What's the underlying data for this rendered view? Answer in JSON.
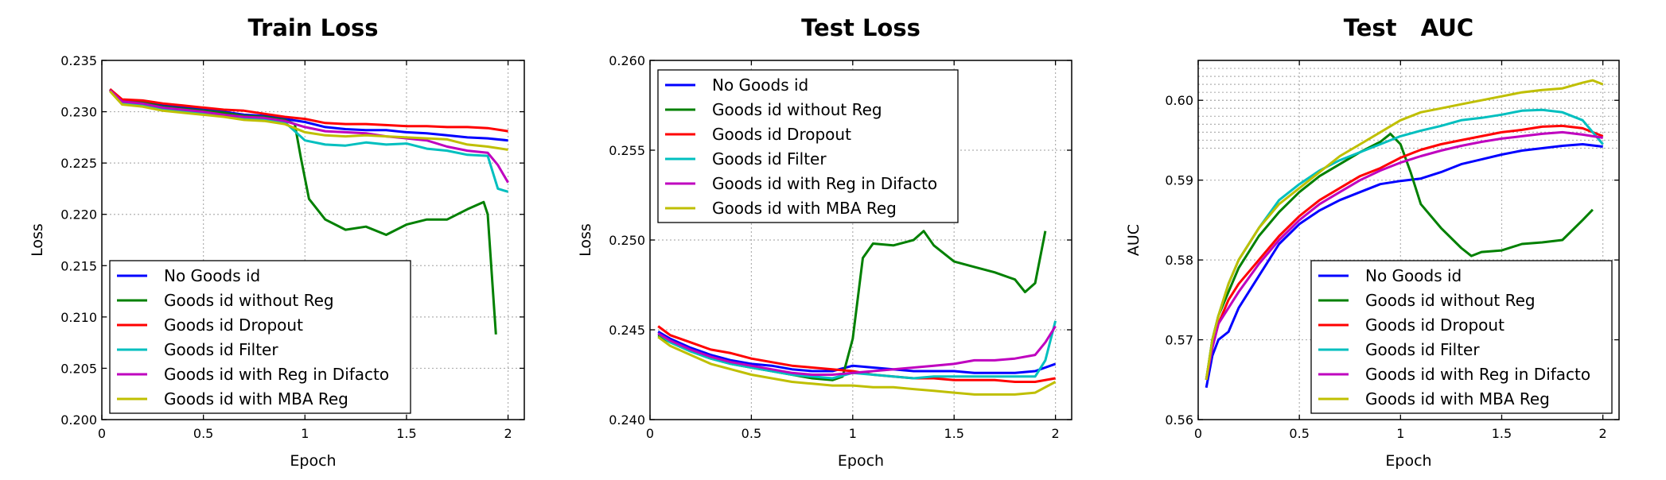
{
  "figure": {
    "background": "#ffffff"
  },
  "chart_data": [
    {
      "type": "line",
      "title": "Train Loss",
      "xlabel": "Epoch",
      "ylabel": "Loss",
      "xlim": [
        0,
        2.08
      ],
      "ylim": [
        0.2,
        0.235
      ],
      "xticks": [
        0,
        0.5,
        1,
        1.5,
        2
      ],
      "xtick_labels": [
        "0",
        "0.5",
        "1",
        "1.5",
        "2"
      ],
      "yticks": [
        0.2,
        0.205,
        0.21,
        0.215,
        0.22,
        0.225,
        0.23,
        0.235
      ],
      "ytick_labels": [
        "0.200",
        "0.205",
        "0.210",
        "0.215",
        "0.220",
        "0.225",
        "0.230",
        "0.235"
      ],
      "grid": true,
      "legend": "bottom-left",
      "series": [
        {
          "name": "No Goods id",
          "color": "#0000ff",
          "x": [
            0.04,
            0.1,
            0.2,
            0.3,
            0.4,
            0.5,
            0.6,
            0.7,
            0.8,
            0.9,
            1.0,
            1.1,
            1.2,
            1.3,
            1.4,
            1.5,
            1.6,
            1.7,
            1.8,
            1.9,
            2.0
          ],
          "y": [
            0.2322,
            0.2311,
            0.231,
            0.2306,
            0.2305,
            0.2302,
            0.23,
            0.2297,
            0.2296,
            0.2293,
            0.229,
            0.2285,
            0.2283,
            0.2282,
            0.2282,
            0.228,
            0.2279,
            0.2277,
            0.2275,
            0.2274,
            0.2272
          ]
        },
        {
          "name": "Goods id without Reg",
          "color": "#008000",
          "x": [
            0.04,
            0.1,
            0.2,
            0.3,
            0.4,
            0.5,
            0.6,
            0.7,
            0.8,
            0.9,
            0.95,
            0.98,
            1.02,
            1.1,
            1.2,
            1.3,
            1.4,
            1.5,
            1.6,
            1.7,
            1.8,
            1.88,
            1.9,
            1.94
          ],
          "y": [
            0.2322,
            0.2311,
            0.2309,
            0.2305,
            0.2303,
            0.2301,
            0.2299,
            0.2296,
            0.2295,
            0.2292,
            0.2288,
            0.2255,
            0.2215,
            0.2195,
            0.2185,
            0.2188,
            0.218,
            0.219,
            0.2195,
            0.2195,
            0.2205,
            0.2212,
            0.22,
            0.2083
          ]
        },
        {
          "name": "Goods id Dropout",
          "color": "#ff0000",
          "x": [
            0.04,
            0.1,
            0.2,
            0.3,
            0.4,
            0.5,
            0.6,
            0.7,
            0.8,
            0.9,
            1.0,
            1.1,
            1.2,
            1.3,
            1.4,
            1.5,
            1.6,
            1.7,
            1.8,
            1.9,
            2.0
          ],
          "y": [
            0.2322,
            0.2312,
            0.2311,
            0.2308,
            0.2306,
            0.2304,
            0.2302,
            0.2301,
            0.2298,
            0.2295,
            0.2293,
            0.2289,
            0.2288,
            0.2288,
            0.2287,
            0.2286,
            0.2286,
            0.2285,
            0.2285,
            0.2284,
            0.2281
          ]
        },
        {
          "name": "Goods id Filter",
          "color": "#00bfbf",
          "x": [
            0.04,
            0.1,
            0.2,
            0.3,
            0.4,
            0.5,
            0.6,
            0.7,
            0.8,
            0.9,
            1.0,
            1.1,
            1.2,
            1.3,
            1.4,
            1.5,
            1.6,
            1.7,
            1.8,
            1.9,
            1.95,
            2.0
          ],
          "y": [
            0.2321,
            0.2309,
            0.2307,
            0.2303,
            0.2301,
            0.2299,
            0.2296,
            0.2294,
            0.2293,
            0.229,
            0.2272,
            0.2268,
            0.2267,
            0.227,
            0.2268,
            0.2269,
            0.2264,
            0.2262,
            0.2258,
            0.2257,
            0.2225,
            0.2222
          ]
        },
        {
          "name": "Goods id with Reg in Difacto",
          "color": "#bf00bf",
          "x": [
            0.04,
            0.1,
            0.2,
            0.3,
            0.4,
            0.5,
            0.6,
            0.7,
            0.8,
            0.9,
            1.0,
            1.1,
            1.2,
            1.3,
            1.4,
            1.5,
            1.6,
            1.7,
            1.8,
            1.9,
            1.95,
            2.0
          ],
          "y": [
            0.2321,
            0.231,
            0.2308,
            0.2304,
            0.2302,
            0.23,
            0.2297,
            0.2295,
            0.2294,
            0.2291,
            0.2285,
            0.2281,
            0.228,
            0.2279,
            0.2276,
            0.2274,
            0.2272,
            0.2266,
            0.2262,
            0.226,
            0.2248,
            0.2231
          ]
        },
        {
          "name": "Goods id with MBA Reg",
          "color": "#bfbf00",
          "x": [
            0.04,
            0.1,
            0.2,
            0.3,
            0.4,
            0.5,
            0.6,
            0.7,
            0.8,
            0.9,
            1.0,
            1.1,
            1.2,
            1.3,
            1.4,
            1.5,
            1.6,
            1.7,
            1.8,
            1.9,
            2.0
          ],
          "y": [
            0.232,
            0.2307,
            0.2305,
            0.2301,
            0.2299,
            0.2297,
            0.2295,
            0.2292,
            0.2291,
            0.2288,
            0.228,
            0.2277,
            0.2276,
            0.2277,
            0.2276,
            0.2275,
            0.2274,
            0.2273,
            0.2268,
            0.2266,
            0.2263
          ]
        }
      ]
    },
    {
      "type": "line",
      "title": "Test Loss",
      "xlabel": "Epoch",
      "ylabel": "Loss",
      "xlim": [
        0,
        2.08
      ],
      "ylim": [
        0.24,
        0.26
      ],
      "xticks": [
        0,
        0.5,
        1,
        1.5,
        2
      ],
      "xtick_labels": [
        "0",
        "0.5",
        "1",
        "1.5",
        "2"
      ],
      "yticks": [
        0.24,
        0.245,
        0.25,
        0.255,
        0.26
      ],
      "ytick_labels": [
        "0.240",
        "0.245",
        "0.250",
        "0.255",
        "0.260"
      ],
      "grid": true,
      "legend": "top-left",
      "series": [
        {
          "name": "No Goods id",
          "color": "#0000ff",
          "x": [
            0.04,
            0.1,
            0.2,
            0.3,
            0.4,
            0.5,
            0.6,
            0.7,
            0.8,
            0.9,
            1.0,
            1.1,
            1.2,
            1.3,
            1.4,
            1.5,
            1.6,
            1.7,
            1.8,
            1.9,
            2.0
          ],
          "y": [
            0.2449,
            0.2445,
            0.244,
            0.2436,
            0.2433,
            0.2431,
            0.243,
            0.2428,
            0.2427,
            0.2427,
            0.243,
            0.2429,
            0.2428,
            0.2427,
            0.2427,
            0.2427,
            0.2426,
            0.2426,
            0.2426,
            0.2427,
            0.2431
          ]
        },
        {
          "name": "Goods id without Reg",
          "color": "#008000",
          "x": [
            0.04,
            0.1,
            0.2,
            0.3,
            0.4,
            0.5,
            0.6,
            0.7,
            0.8,
            0.9,
            0.95,
            1.0,
            1.05,
            1.1,
            1.2,
            1.3,
            1.35,
            1.4,
            1.5,
            1.6,
            1.7,
            1.8,
            1.85,
            1.9,
            1.95
          ],
          "y": [
            0.2447,
            0.2443,
            0.2438,
            0.2434,
            0.2431,
            0.2429,
            0.2427,
            0.2425,
            0.2423,
            0.2422,
            0.2424,
            0.2445,
            0.249,
            0.2498,
            0.2497,
            0.25,
            0.2505,
            0.2497,
            0.2488,
            0.2485,
            0.2482,
            0.2478,
            0.2471,
            0.2476,
            0.2505
          ]
        },
        {
          "name": "Goods id Dropout",
          "color": "#ff0000",
          "x": [
            0.04,
            0.1,
            0.2,
            0.3,
            0.4,
            0.5,
            0.6,
            0.7,
            0.8,
            0.9,
            1.0,
            1.1,
            1.2,
            1.3,
            1.4,
            1.5,
            1.6,
            1.7,
            1.8,
            1.9,
            2.0
          ],
          "y": [
            0.2452,
            0.2447,
            0.2443,
            0.2439,
            0.2437,
            0.2434,
            0.2432,
            0.243,
            0.2429,
            0.2428,
            0.2427,
            0.2425,
            0.2424,
            0.2423,
            0.2423,
            0.2422,
            0.2422,
            0.2422,
            0.2421,
            0.2421,
            0.2423
          ]
        },
        {
          "name": "Goods id Filter",
          "color": "#00bfbf",
          "x": [
            0.04,
            0.1,
            0.2,
            0.3,
            0.4,
            0.5,
            0.6,
            0.7,
            0.8,
            0.9,
            1.0,
            1.1,
            1.2,
            1.3,
            1.4,
            1.5,
            1.6,
            1.7,
            1.8,
            1.9,
            1.95,
            2.0
          ],
          "y": [
            0.2448,
            0.2443,
            0.2438,
            0.2434,
            0.2431,
            0.2429,
            0.2427,
            0.2425,
            0.2424,
            0.2423,
            0.2426,
            0.2425,
            0.2424,
            0.2423,
            0.2424,
            0.2424,
            0.2424,
            0.2424,
            0.2424,
            0.2424,
            0.2433,
            0.2455
          ]
        },
        {
          "name": "Goods id with Reg in Difacto",
          "color": "#bf00bf",
          "x": [
            0.04,
            0.1,
            0.2,
            0.3,
            0.4,
            0.5,
            0.6,
            0.7,
            0.8,
            0.9,
            1.0,
            1.1,
            1.2,
            1.3,
            1.4,
            1.5,
            1.6,
            1.7,
            1.8,
            1.9,
            1.95,
            2.0
          ],
          "y": [
            0.2448,
            0.2444,
            0.2439,
            0.2435,
            0.2432,
            0.243,
            0.2428,
            0.2426,
            0.2425,
            0.2425,
            0.2426,
            0.2427,
            0.2428,
            0.2429,
            0.243,
            0.2431,
            0.2433,
            0.2433,
            0.2434,
            0.2436,
            0.2443,
            0.2452
          ]
        },
        {
          "name": "Goods id with MBA Reg",
          "color": "#bfbf00",
          "x": [
            0.04,
            0.1,
            0.2,
            0.3,
            0.4,
            0.5,
            0.6,
            0.7,
            0.8,
            0.9,
            1.0,
            1.1,
            1.2,
            1.3,
            1.4,
            1.5,
            1.6,
            1.7,
            1.8,
            1.9,
            2.0
          ],
          "y": [
            0.2446,
            0.2441,
            0.2436,
            0.2431,
            0.2428,
            0.2425,
            0.2423,
            0.2421,
            0.242,
            0.2419,
            0.2419,
            0.2418,
            0.2418,
            0.2417,
            0.2416,
            0.2415,
            0.2414,
            0.2414,
            0.2414,
            0.2415,
            0.2421
          ]
        }
      ]
    },
    {
      "type": "line",
      "title": "Test   AUC",
      "xlabel": "Epoch",
      "ylabel": "AUC",
      "xlim": [
        0,
        2.08
      ],
      "ylim": [
        0.56,
        0.605
      ],
      "xticks": [
        0,
        0.5,
        1,
        1.5,
        2
      ],
      "xtick_labels": [
        "0",
        "0.5",
        "1",
        "1.5",
        "2"
      ],
      "yticks": [
        0.56,
        0.57,
        0.58,
        0.59,
        0.6
      ],
      "ytick_labels": [
        "0.56",
        "0.57",
        "0.58",
        "0.59",
        "0.60"
      ],
      "grid": true,
      "dense_grid_above": 0.594,
      "legend": "bottom-right",
      "series": [
        {
          "name": "No Goods id",
          "color": "#0000ff",
          "x": [
            0.04,
            0.07,
            0.1,
            0.15,
            0.2,
            0.3,
            0.4,
            0.5,
            0.6,
            0.7,
            0.8,
            0.9,
            1.0,
            1.1,
            1.2,
            1.3,
            1.4,
            1.5,
            1.6,
            1.7,
            1.8,
            1.9,
            2.0
          ],
          "y": [
            0.564,
            0.568,
            0.57,
            0.571,
            0.574,
            0.578,
            0.582,
            0.5845,
            0.5862,
            0.5875,
            0.5885,
            0.5895,
            0.5899,
            0.5902,
            0.591,
            0.592,
            0.5926,
            0.5932,
            0.5937,
            0.594,
            0.5943,
            0.5945,
            0.5942
          ]
        },
        {
          "name": "Goods id without Reg",
          "color": "#008000",
          "x": [
            0.04,
            0.07,
            0.1,
            0.15,
            0.2,
            0.3,
            0.4,
            0.5,
            0.6,
            0.7,
            0.8,
            0.9,
            0.95,
            1.0,
            1.05,
            1.1,
            1.2,
            1.3,
            1.35,
            1.4,
            1.5,
            1.6,
            1.7,
            1.8,
            1.9,
            1.95
          ],
          "y": [
            0.565,
            0.57,
            0.573,
            0.576,
            0.579,
            0.583,
            0.586,
            0.5885,
            0.5905,
            0.592,
            0.5935,
            0.5948,
            0.5958,
            0.5945,
            0.591,
            0.587,
            0.584,
            0.5815,
            0.5805,
            0.581,
            0.5812,
            0.582,
            0.5822,
            0.5825,
            0.585,
            0.5863
          ]
        },
        {
          "name": "Goods id Dropout",
          "color": "#ff0000",
          "x": [
            0.04,
            0.07,
            0.1,
            0.15,
            0.2,
            0.3,
            0.4,
            0.5,
            0.6,
            0.7,
            0.8,
            0.9,
            1.0,
            1.1,
            1.2,
            1.3,
            1.4,
            1.5,
            1.6,
            1.7,
            1.8,
            1.9,
            2.0
          ],
          "y": [
            0.565,
            0.569,
            0.572,
            0.575,
            0.577,
            0.58,
            0.583,
            0.5855,
            0.5875,
            0.589,
            0.5905,
            0.5915,
            0.5928,
            0.5938,
            0.5945,
            0.595,
            0.5955,
            0.596,
            0.5963,
            0.5967,
            0.5968,
            0.5965,
            0.5955
          ]
        },
        {
          "name": "Goods id Filter",
          "color": "#00bfbf",
          "x": [
            0.04,
            0.07,
            0.1,
            0.15,
            0.2,
            0.3,
            0.4,
            0.5,
            0.6,
            0.7,
            0.8,
            0.9,
            1.0,
            1.1,
            1.2,
            1.3,
            1.4,
            1.5,
            1.6,
            1.7,
            1.8,
            1.9,
            2.0
          ],
          "y": [
            0.565,
            0.57,
            0.573,
            0.577,
            0.58,
            0.584,
            0.5875,
            0.5895,
            0.5912,
            0.5925,
            0.5935,
            0.5945,
            0.5955,
            0.5962,
            0.5968,
            0.5975,
            0.5978,
            0.5982,
            0.5987,
            0.5988,
            0.5985,
            0.5975,
            0.5945
          ]
        },
        {
          "name": "Goods id with Reg in Difacto",
          "color": "#bf00bf",
          "x": [
            0.04,
            0.07,
            0.1,
            0.15,
            0.2,
            0.3,
            0.4,
            0.5,
            0.6,
            0.7,
            0.8,
            0.9,
            1.0,
            1.1,
            1.2,
            1.3,
            1.4,
            1.5,
            1.6,
            1.7,
            1.8,
            1.9,
            2.0
          ],
          "y": [
            0.565,
            0.569,
            0.572,
            0.574,
            0.576,
            0.5795,
            0.5825,
            0.585,
            0.587,
            0.5885,
            0.59,
            0.5912,
            0.5922,
            0.593,
            0.5937,
            0.5943,
            0.5948,
            0.5952,
            0.5955,
            0.5958,
            0.596,
            0.5957,
            0.5953
          ]
        },
        {
          "name": "Goods id with MBA Reg",
          "color": "#bfbf00",
          "x": [
            0.04,
            0.07,
            0.1,
            0.15,
            0.2,
            0.3,
            0.4,
            0.5,
            0.6,
            0.7,
            0.8,
            0.9,
            1.0,
            1.1,
            1.2,
            1.3,
            1.4,
            1.5,
            1.6,
            1.7,
            1.8,
            1.9,
            1.95,
            2.0
          ],
          "y": [
            0.565,
            0.57,
            0.573,
            0.577,
            0.58,
            0.584,
            0.587,
            0.589,
            0.591,
            0.593,
            0.5945,
            0.596,
            0.5975,
            0.5985,
            0.599,
            0.5995,
            0.6,
            0.6005,
            0.601,
            0.6013,
            0.6015,
            0.6022,
            0.6025,
            0.602
          ]
        }
      ]
    }
  ]
}
